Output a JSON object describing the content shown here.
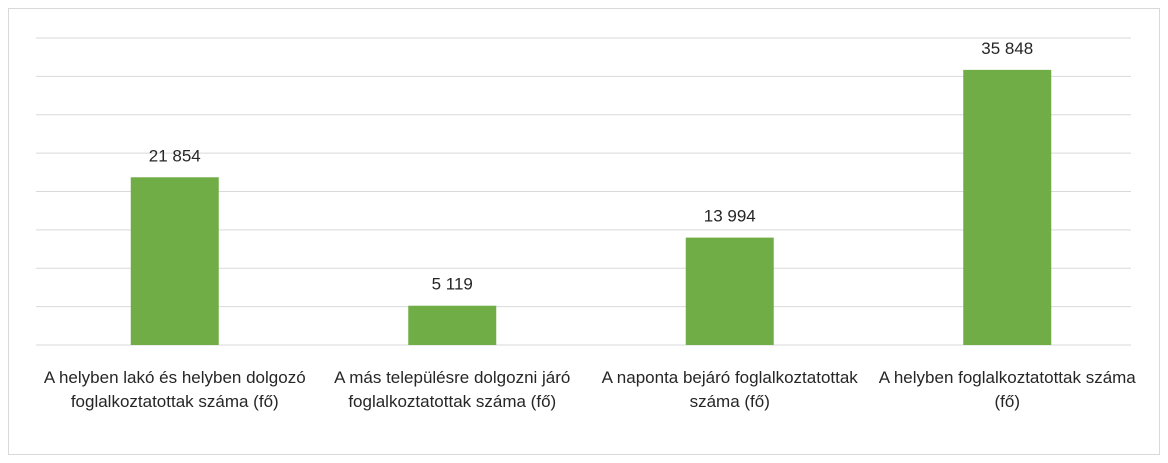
{
  "chart_data": {
    "type": "bar",
    "categories": [
      "A helyben lakó és helyben dolgozó foglalkoztatottak száma (fő)",
      "A más településre dolgozni járó foglalkoztatottak száma (fő)",
      "A naponta bejáró foglalkoztatottak száma (fő)",
      "A helyben foglalkoztatottak száma (fő)"
    ],
    "values": [
      21854,
      5119,
      13994,
      35848
    ],
    "value_labels": [
      "21 854",
      "5 119",
      "13 994",
      "35 848"
    ],
    "color": "#70ad47",
    "ylim": [
      0,
      40000
    ],
    "yticks": [
      0,
      5000,
      10000,
      15000,
      20000,
      25000,
      30000,
      35000,
      40000
    ],
    "grid": true
  }
}
